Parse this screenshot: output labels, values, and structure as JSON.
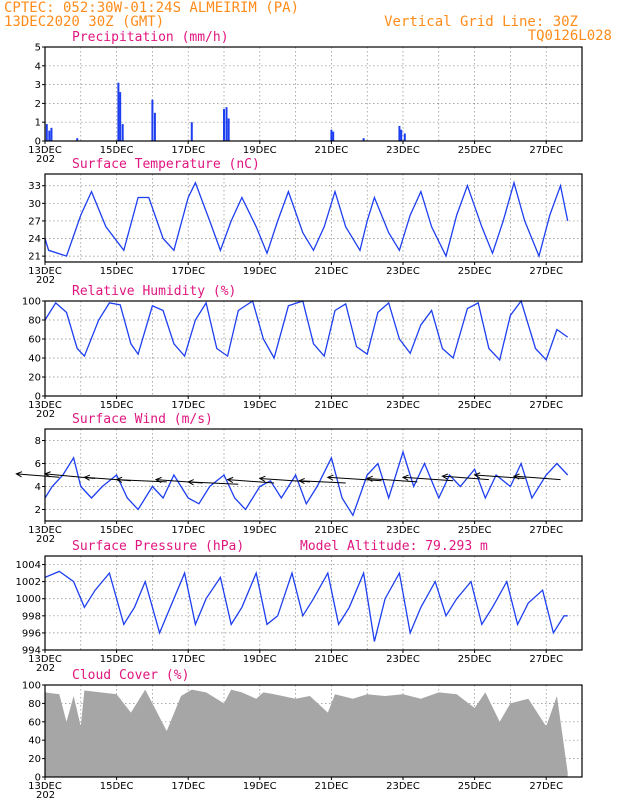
{
  "header": {
    "line1": "CPTEC:  052:30W-01:24S  ALMEIRIM (PA)",
    "line2": "13DEC2020 30Z (GMT)",
    "vgrid": "Vertical Grid Line: 30Z",
    "code": "TQ0126L028",
    "year_fragment": "202"
  },
  "model_altitude": "Model Altitude: 79.293 m",
  "colors": {
    "header": "#ff8c1a",
    "title": "#e0157f",
    "series": "#1e3ff0",
    "cloud": "#a6a6a6"
  },
  "x_axis": {
    "labels": [
      "13DEC",
      "15DEC",
      "17DEC",
      "19DEC",
      "21DEC",
      "23DEC",
      "25DEC",
      "27DEC"
    ],
    "days_span": 15,
    "label_days": [
      0,
      2,
      4,
      6,
      8,
      10,
      12,
      14
    ]
  },
  "chart_data": [
    {
      "type": "bar",
      "title": "Precipitation (mm/h)",
      "ylim": [
        0,
        5
      ],
      "yticks": [
        0,
        1,
        2,
        3,
        4,
        5
      ],
      "x_unit": "days since 13DEC 00Z",
      "points": [
        [
          0.05,
          0.9
        ],
        [
          0.12,
          0.55
        ],
        [
          0.18,
          0.7
        ],
        [
          0.9,
          0.15
        ],
        [
          2.05,
          3.1
        ],
        [
          2.1,
          2.6
        ],
        [
          2.17,
          0.9
        ],
        [
          3.0,
          2.2
        ],
        [
          3.07,
          1.5
        ],
        [
          4.1,
          1.0
        ],
        [
          5.0,
          1.7
        ],
        [
          5.07,
          1.8
        ],
        [
          5.13,
          1.2
        ],
        [
          8.0,
          0.6
        ],
        [
          8.05,
          0.5
        ],
        [
          8.9,
          0.15
        ],
        [
          9.9,
          0.8
        ],
        [
          9.95,
          0.6
        ],
        [
          10.05,
          0.4
        ]
      ]
    },
    {
      "type": "line",
      "title": "Surface Temperature (nC)",
      "ylim": [
        20,
        35
      ],
      "yticks": [
        21,
        24,
        27,
        30,
        33
      ],
      "points": [
        [
          0,
          24
        ],
        [
          0.1,
          22
        ],
        [
          0.6,
          21
        ],
        [
          1.0,
          28
        ],
        [
          1.3,
          32
        ],
        [
          1.7,
          26
        ],
        [
          2.2,
          22
        ],
        [
          2.6,
          31
        ],
        [
          2.9,
          31
        ],
        [
          3.3,
          24
        ],
        [
          3.6,
          22
        ],
        [
          4.0,
          31
        ],
        [
          4.2,
          33.5
        ],
        [
          4.6,
          27
        ],
        [
          4.9,
          22
        ],
        [
          5.2,
          27
        ],
        [
          5.5,
          31
        ],
        [
          5.9,
          26
        ],
        [
          6.2,
          21.5
        ],
        [
          6.5,
          27
        ],
        [
          6.8,
          32
        ],
        [
          7.2,
          25
        ],
        [
          7.5,
          22
        ],
        [
          7.8,
          26
        ],
        [
          8.1,
          32
        ],
        [
          8.4,
          26
        ],
        [
          8.8,
          22
        ],
        [
          9.0,
          27
        ],
        [
          9.2,
          31
        ],
        [
          9.6,
          25
        ],
        [
          9.9,
          22
        ],
        [
          10.2,
          28
        ],
        [
          10.5,
          32
        ],
        [
          10.8,
          26
        ],
        [
          11.2,
          21
        ],
        [
          11.5,
          28
        ],
        [
          11.8,
          33
        ],
        [
          12.2,
          26
        ],
        [
          12.5,
          21.5
        ],
        [
          12.8,
          27
        ],
        [
          13.1,
          33.5
        ],
        [
          13.4,
          27
        ],
        [
          13.8,
          21
        ],
        [
          14.1,
          28
        ],
        [
          14.4,
          33
        ],
        [
          14.6,
          27
        ]
      ]
    },
    {
      "type": "line",
      "title": "Relative Humidity (%)",
      "ylim": [
        0,
        100
      ],
      "yticks": [
        0,
        20,
        40,
        60,
        80,
        100
      ],
      "points": [
        [
          0,
          80
        ],
        [
          0.3,
          98
        ],
        [
          0.6,
          88
        ],
        [
          0.9,
          50
        ],
        [
          1.1,
          42
        ],
        [
          1.5,
          80
        ],
        [
          1.8,
          98
        ],
        [
          2.1,
          96
        ],
        [
          2.4,
          55
        ],
        [
          2.6,
          44
        ],
        [
          3.0,
          95
        ],
        [
          3.3,
          90
        ],
        [
          3.6,
          55
        ],
        [
          3.9,
          42
        ],
        [
          4.2,
          80
        ],
        [
          4.5,
          98
        ],
        [
          4.8,
          50
        ],
        [
          5.1,
          42
        ],
        [
          5.4,
          90
        ],
        [
          5.8,
          100
        ],
        [
          6.1,
          60
        ],
        [
          6.4,
          40
        ],
        [
          6.8,
          95
        ],
        [
          7.2,
          100
        ],
        [
          7.5,
          55
        ],
        [
          7.8,
          42
        ],
        [
          8.1,
          90
        ],
        [
          8.4,
          97
        ],
        [
          8.7,
          52
        ],
        [
          9.0,
          44
        ],
        [
          9.3,
          88
        ],
        [
          9.6,
          98
        ],
        [
          9.9,
          60
        ],
        [
          10.2,
          45
        ],
        [
          10.5,
          75
        ],
        [
          10.8,
          90
        ],
        [
          11.1,
          50
        ],
        [
          11.4,
          40
        ],
        [
          11.8,
          92
        ],
        [
          12.1,
          98
        ],
        [
          12.4,
          50
        ],
        [
          12.7,
          38
        ],
        [
          13.0,
          85
        ],
        [
          13.3,
          100
        ],
        [
          13.7,
          50
        ],
        [
          14.0,
          38
        ],
        [
          14.3,
          70
        ],
        [
          14.6,
          62
        ]
      ]
    },
    {
      "type": "line",
      "title": "Surface Wind (m/s)",
      "ylim": [
        1,
        9
      ],
      "yticks": [
        2,
        4,
        6,
        8
      ],
      "points": [
        [
          0,
          3
        ],
        [
          0.2,
          4
        ],
        [
          0.5,
          5
        ],
        [
          0.8,
          6.5
        ],
        [
          1.0,
          4
        ],
        [
          1.3,
          3
        ],
        [
          1.6,
          4
        ],
        [
          2.0,
          5
        ],
        [
          2.3,
          3
        ],
        [
          2.6,
          2
        ],
        [
          3.0,
          4
        ],
        [
          3.3,
          3
        ],
        [
          3.6,
          5
        ],
        [
          4.0,
          3
        ],
        [
          4.3,
          2.5
        ],
        [
          4.6,
          4
        ],
        [
          5.0,
          5
        ],
        [
          5.3,
          3
        ],
        [
          5.6,
          2
        ],
        [
          6.0,
          4
        ],
        [
          6.3,
          4.5
        ],
        [
          6.6,
          3
        ],
        [
          7.0,
          5
        ],
        [
          7.3,
          2.5
        ],
        [
          7.6,
          4
        ],
        [
          8.0,
          6.5
        ],
        [
          8.3,
          3
        ],
        [
          8.6,
          1.5
        ],
        [
          9.0,
          5
        ],
        [
          9.3,
          6
        ],
        [
          9.6,
          3
        ],
        [
          10.0,
          7
        ],
        [
          10.3,
          4
        ],
        [
          10.6,
          6
        ],
        [
          11.0,
          3
        ],
        [
          11.3,
          5
        ],
        [
          11.6,
          4
        ],
        [
          12.0,
          5.5
        ],
        [
          12.3,
          3
        ],
        [
          12.6,
          5
        ],
        [
          13.0,
          4
        ],
        [
          13.3,
          6
        ],
        [
          13.6,
          3
        ],
        [
          14.0,
          5
        ],
        [
          14.3,
          6
        ],
        [
          14.6,
          5
        ]
      ],
      "vectors": [
        [
          0.4,
          4.8,
          -1.2,
          0.3
        ],
        [
          1.4,
          4.7,
          -1.4,
          0.4
        ],
        [
          2.4,
          4.5,
          -1.3,
          0.3
        ],
        [
          3.4,
          4.4,
          -1.4,
          0.2
        ],
        [
          4.4,
          4.3,
          -1.3,
          0.3
        ],
        [
          5.4,
          4.2,
          -1.4,
          0.2
        ],
        [
          6.4,
          4.3,
          -1.3,
          0.3
        ],
        [
          7.4,
          4.4,
          -1.4,
          0.3
        ],
        [
          8.4,
          4.3,
          -1.3,
          0.2
        ],
        [
          9.4,
          4.5,
          -1.5,
          0.3
        ],
        [
          10.4,
          4.4,
          -1.4,
          0.3
        ],
        [
          11.4,
          4.5,
          -1.4,
          0.3
        ],
        [
          12.4,
          4.6,
          -1.3,
          0.3
        ],
        [
          13.4,
          4.7,
          -1.4,
          0.3
        ],
        [
          14.4,
          4.6,
          -1.3,
          0.3
        ]
      ]
    },
    {
      "type": "line",
      "title": "Surface Pressure (hPa)",
      "ylim": [
        994,
        1005
      ],
      "yticks": [
        994,
        996,
        998,
        1000,
        1002,
        1004
      ],
      "points": [
        [
          0,
          1002.5
        ],
        [
          0.4,
          1003.2
        ],
        [
          0.8,
          1002
        ],
        [
          1.1,
          999
        ],
        [
          1.4,
          1001
        ],
        [
          1.8,
          1003
        ],
        [
          2.2,
          997
        ],
        [
          2.5,
          999
        ],
        [
          2.8,
          1002
        ],
        [
          3.2,
          996
        ],
        [
          3.5,
          999
        ],
        [
          3.9,
          1003
        ],
        [
          4.2,
          997
        ],
        [
          4.5,
          1000
        ],
        [
          4.9,
          1002.5
        ],
        [
          5.2,
          997
        ],
        [
          5.5,
          999
        ],
        [
          5.9,
          1003
        ],
        [
          6.2,
          997
        ],
        [
          6.5,
          998
        ],
        [
          6.9,
          1003
        ],
        [
          7.2,
          998
        ],
        [
          7.5,
          1000
        ],
        [
          7.9,
          1003
        ],
        [
          8.2,
          997
        ],
        [
          8.5,
          999
        ],
        [
          8.9,
          1003
        ],
        [
          9.2,
          995
        ],
        [
          9.5,
          1000
        ],
        [
          9.9,
          1003
        ],
        [
          10.2,
          996
        ],
        [
          10.5,
          999
        ],
        [
          10.9,
          1002
        ],
        [
          11.2,
          998
        ],
        [
          11.5,
          1000
        ],
        [
          11.9,
          1002
        ],
        [
          12.2,
          997
        ],
        [
          12.5,
          999
        ],
        [
          12.9,
          1002
        ],
        [
          13.2,
          997
        ],
        [
          13.5,
          999.5
        ],
        [
          13.9,
          1001
        ],
        [
          14.2,
          996
        ],
        [
          14.5,
          998
        ],
        [
          14.6,
          998
        ]
      ]
    },
    {
      "type": "area",
      "title": "Cloud Cover (%)",
      "ylim": [
        0,
        100
      ],
      "yticks": [
        0,
        20,
        40,
        60,
        80,
        100
      ],
      "points": [
        [
          0,
          92
        ],
        [
          0.4,
          90
        ],
        [
          0.6,
          60
        ],
        [
          0.8,
          88
        ],
        [
          1.0,
          55
        ],
        [
          1.1,
          94
        ],
        [
          2.0,
          90
        ],
        [
          2.4,
          70
        ],
        [
          2.8,
          95
        ],
        [
          3.0,
          80
        ],
        [
          3.4,
          50
        ],
        [
          3.8,
          88
        ],
        [
          4.1,
          95
        ],
        [
          4.5,
          92
        ],
        [
          5.0,
          80
        ],
        [
          5.2,
          95
        ],
        [
          5.5,
          92
        ],
        [
          5.9,
          85
        ],
        [
          6.1,
          92
        ],
        [
          6.4,
          90
        ],
        [
          7.0,
          85
        ],
        [
          7.4,
          88
        ],
        [
          7.9,
          70
        ],
        [
          8.1,
          90
        ],
        [
          8.6,
          85
        ],
        [
          9.0,
          90
        ],
        [
          9.5,
          88
        ],
        [
          10.0,
          90
        ],
        [
          10.5,
          85
        ],
        [
          11.0,
          92
        ],
        [
          11.5,
          90
        ],
        [
          12.0,
          75
        ],
        [
          12.3,
          92
        ],
        [
          12.7,
          60
        ],
        [
          13.0,
          80
        ],
        [
          13.5,
          85
        ],
        [
          14.0,
          55
        ],
        [
          14.3,
          88
        ],
        [
          14.6,
          5
        ]
      ]
    }
  ]
}
